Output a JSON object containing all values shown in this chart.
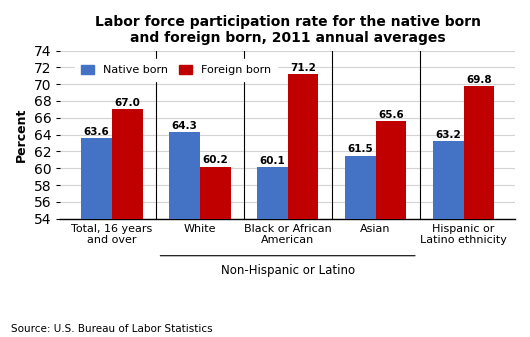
{
  "title": "Labor force participation rate for the native born\nand foreign born, 2011 annual averages",
  "categories": [
    "Total, 16 years\nand over",
    "White",
    "Black or African\nAmerican",
    "Asian",
    "Hispanic or\nLatino ethnicity"
  ],
  "native_born": [
    63.6,
    64.3,
    60.1,
    61.5,
    63.2
  ],
  "foreign_born": [
    67.0,
    60.2,
    71.2,
    65.6,
    69.8
  ],
  "native_color": "#4472C4",
  "foreign_color": "#C00000",
  "ylabel": "Percent",
  "xlabel_group": "Non-Hispanic or Latino",
  "source": "Source: U.S. Bureau of Labor Statistics",
  "ylim": [
    54,
    74
  ],
  "yticks": [
    54,
    56,
    58,
    60,
    62,
    64,
    66,
    68,
    70,
    72,
    74
  ],
  "bar_width": 0.35,
  "legend_native": "Native born",
  "legend_foreign": "Foreign born"
}
